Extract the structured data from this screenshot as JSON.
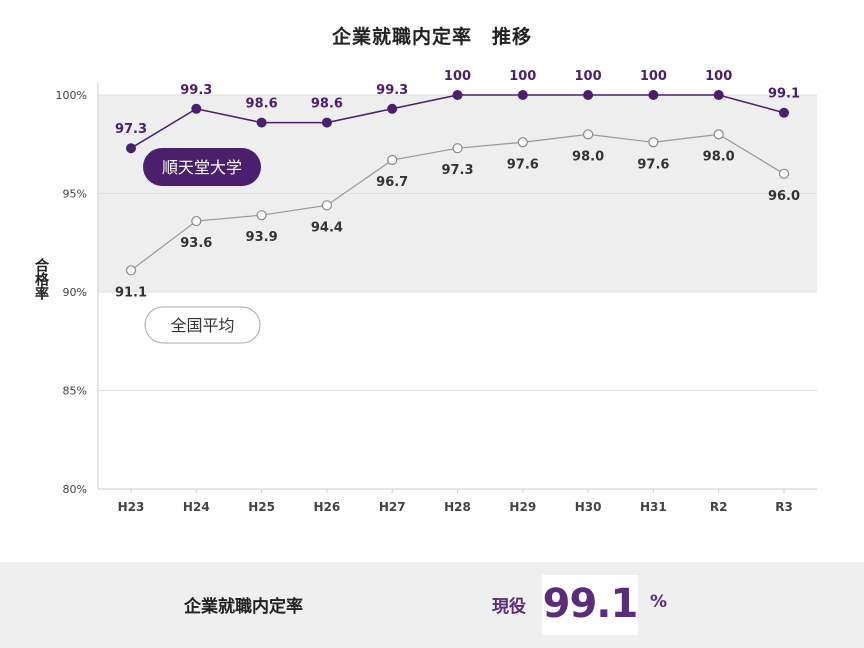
{
  "chart_data": {
    "type": "line",
    "title": "企業就職内定率　推移",
    "ylabel": "合格率",
    "categories": [
      "H23",
      "H24",
      "H25",
      "H26",
      "H27",
      "H28",
      "H29",
      "H30",
      "H31",
      "R2",
      "R3"
    ],
    "y_ticks": [
      "80%",
      "85%",
      "90%",
      "95%",
      "100%"
    ],
    "ylim": [
      80,
      100
    ],
    "shaded_band": [
      90,
      100
    ],
    "series": [
      {
        "name": "順天堂大学",
        "color": "#4b1f6b",
        "values": [
          97.3,
          99.3,
          98.6,
          98.6,
          99.3,
          100,
          100,
          100,
          100,
          100,
          99.1
        ],
        "labels": [
          "97.3",
          "99.3",
          "98.6",
          "98.6",
          "99.3",
          "100",
          "100",
          "100",
          "100",
          "100",
          "99.1"
        ]
      },
      {
        "name": "全国平均",
        "color": "#999999",
        "values": [
          91.1,
          93.6,
          93.9,
          94.4,
          96.7,
          97.3,
          97.6,
          98.0,
          97.6,
          98.0,
          96.0
        ],
        "labels": [
          "91.1",
          "93.6",
          "93.9",
          "94.4",
          "96.7",
          "97.3",
          "97.6",
          "98.0",
          "97.6",
          "98.0",
          "96.0"
        ]
      }
    ],
    "legend": "inline"
  },
  "footer": {
    "label": "企業就職内定率",
    "prefix": "現役",
    "value": "99.1",
    "unit": "%"
  }
}
